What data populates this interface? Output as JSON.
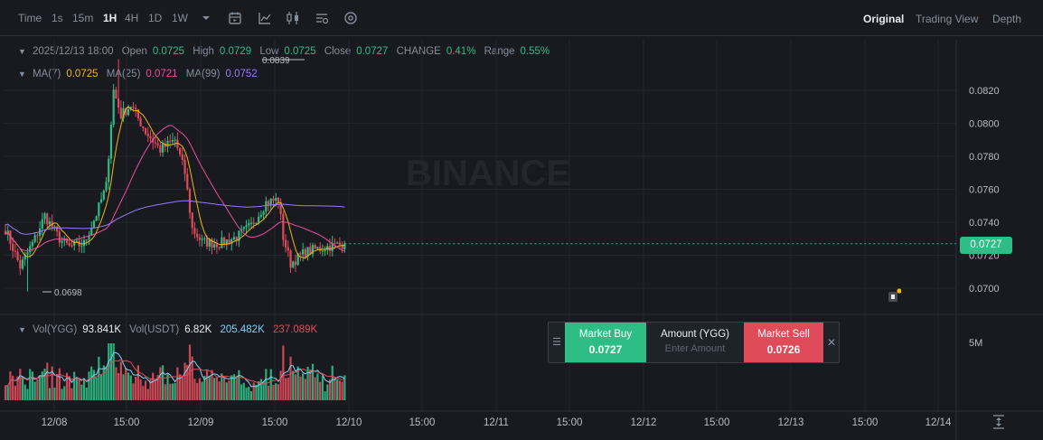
{
  "toolbar": {
    "time_label": "Time",
    "intervals": [
      "1s",
      "15m",
      "1H",
      "4H",
      "1D",
      "1W"
    ],
    "active_interval": "1H",
    "views": [
      "Original",
      "Trading View",
      "Depth"
    ],
    "active_view": "Original"
  },
  "ohlc": {
    "datetime": "2025/12/13 18:00",
    "open_label": "Open",
    "open": "0.0725",
    "high_label": "High",
    "high": "0.0729",
    "low_label": "Low",
    "low": "0.0725",
    "close_label": "Close",
    "close": "0.0727",
    "change_label": "CHANGE",
    "change": "0.41%",
    "range_label": "Range",
    "range": "0.55%"
  },
  "ma": {
    "ma7_label": "MA(7)",
    "ma7": "0.0725",
    "ma25_label": "MA(25)",
    "ma25": "0.0721",
    "ma99_label": "MA(99)",
    "ma99": "0.0752"
  },
  "volume": {
    "vol_ygg_label": "Vol(YGG)",
    "vol_ygg": "93.841K",
    "vol_usdt_label": "Vol(USDT)",
    "vol_usdt": "6.82K",
    "vol_ma1": "205.482K",
    "vol_ma2": "237.089K",
    "axis_label": "5M"
  },
  "price_axis": [
    "0.0820",
    "0.0800",
    "0.0780",
    "0.0760",
    "0.0740",
    "0.0720",
    "0.0700"
  ],
  "current_price": "0.0727",
  "high_marker": "0.0839",
  "low_marker": "0.0698",
  "watermark": "BINANCE",
  "time_axis": [
    "12/08",
    "15:00",
    "12/09",
    "15:00",
    "12/10",
    "15:00",
    "12/11",
    "15:00",
    "12/12",
    "15:00",
    "12/13",
    "15:00",
    "12/14"
  ],
  "trade_panel": {
    "buy_label": "Market Buy",
    "buy_price": "0.0727",
    "amount_label": "Amount (YGG)",
    "amount_placeholder": "Enter Amount",
    "sell_label": "Market Sell",
    "sell_price": "0.0726"
  },
  "colors": {
    "up": "#2ebd85",
    "down": "#e04b5a",
    "ma7": "#f0b90b",
    "ma25": "#e94d9f",
    "ma99": "#9d7cf1",
    "background": "#181a20"
  },
  "chart_data": {
    "type": "candlestick",
    "interval": "1H",
    "ylim": [
      0.069,
      0.084
    ],
    "close_anchors": [
      {
        "x": "12/08 00:00",
        "y": 0.0736
      },
      {
        "x": "12/08 06:00",
        "y": 0.0713
      },
      {
        "x": "12/08 12:00",
        "y": 0.073
      },
      {
        "x": "12/08 16:00",
        "y": 0.0744
      },
      {
        "x": "12/08 22:00",
        "y": 0.073
      },
      {
        "x": "12/09 02:00",
        "y": 0.0725
      },
      {
        "x": "12/09 08:00",
        "y": 0.0727
      },
      {
        "x": "12/09 13:00",
        "y": 0.0745
      },
      {
        "x": "12/09 17:00",
        "y": 0.0762
      },
      {
        "x": "12/09 20:00",
        "y": 0.082
      },
      {
        "x": "12/09 23:00",
        "y": 0.0805
      },
      {
        "x": "12/10 03:00",
        "y": 0.0811
      },
      {
        "x": "12/10 09:00",
        "y": 0.0795
      },
      {
        "x": "12/10 15:00",
        "y": 0.0784
      },
      {
        "x": "12/10 21:00",
        "y": 0.079
      },
      {
        "x": "12/11 01:00",
        "y": 0.077
      },
      {
        "x": "12/11 04:00",
        "y": 0.0736
      },
      {
        "x": "12/11 08:00",
        "y": 0.0728
      },
      {
        "x": "12/11 15:00",
        "y": 0.0727
      },
      {
        "x": "12/11 22:00",
        "y": 0.0731
      },
      {
        "x": "12/12 04:00",
        "y": 0.0738
      },
      {
        "x": "12/12 10:00",
        "y": 0.0752
      },
      {
        "x": "12/12 15:00",
        "y": 0.0754
      },
      {
        "x": "12/12 17:00",
        "y": 0.0731
      },
      {
        "x": "12/12 20:00",
        "y": 0.0715
      },
      {
        "x": "12/13 02:00",
        "y": 0.0722
      },
      {
        "x": "12/13 10:00",
        "y": 0.0725
      },
      {
        "x": "12/13 18:00",
        "y": 0.0727
      }
    ],
    "series": [
      {
        "name": "MA(7)",
        "last": 0.0725
      },
      {
        "name": "MA(25)",
        "last": 0.0721
      },
      {
        "name": "MA(99)",
        "last": 0.0752
      }
    ],
    "volume_scale_label": "5M"
  }
}
